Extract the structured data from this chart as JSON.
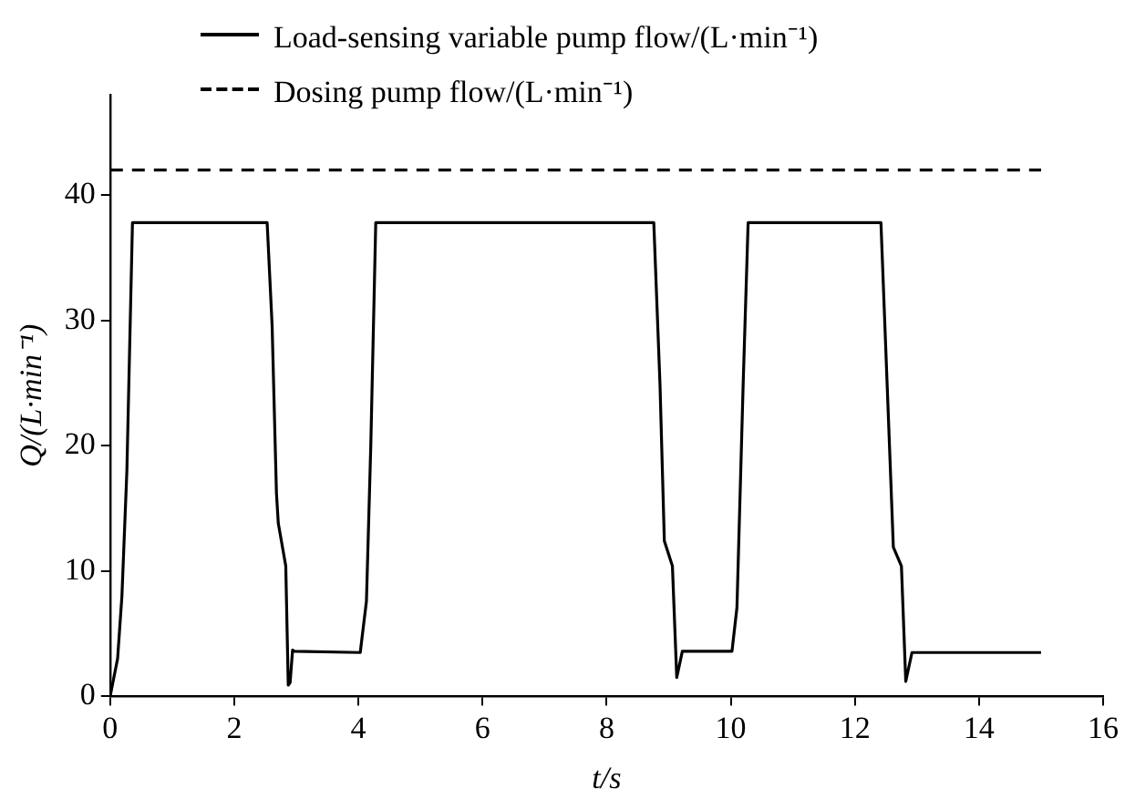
{
  "chart_data": {
    "type": "line",
    "xlabel": "t/s",
    "ylabel": "Q/(L·min⁻¹)",
    "xlim": [
      0,
      16
    ],
    "ylim": [
      0,
      48
    ],
    "xticks": [
      0,
      2,
      4,
      6,
      8,
      10,
      12,
      14,
      16
    ],
    "yticks": [
      0,
      10,
      20,
      30,
      40
    ],
    "grid": false,
    "legend": "top",
    "marker": "none",
    "series": [
      {
        "name": "Load-sensing variable pump flow/(L·min⁻¹)",
        "color": "#000000",
        "line_style": "solid",
        "x": [
          0,
          0.12,
          0.19,
          0.27,
          0.36,
          2.53,
          2.61,
          2.68,
          2.71,
          2.83,
          2.87,
          2.9,
          2.94,
          2.97,
          4.03,
          4.13,
          4.2,
          4.28,
          8.76,
          8.86,
          8.93,
          9.06,
          9.13,
          9.22,
          10.02,
          10.1,
          10.2,
          10.28,
          12.42,
          12.52,
          12.62,
          12.75,
          12.82,
          12.92,
          15
        ],
        "values": [
          0,
          3,
          8,
          18,
          37.8,
          37.8,
          29.6,
          16.2,
          13.8,
          10.4,
          0.9,
          1.1,
          3.7,
          3.6,
          3.5,
          7.6,
          20,
          37.8,
          37.8,
          24.9,
          12.4,
          10.4,
          1.5,
          3.6,
          3.6,
          7.1,
          24.9,
          37.8,
          37.8,
          24.9,
          11.9,
          10.4,
          1.2,
          3.5,
          3.5
        ]
      },
      {
        "name": "Dosing pump flow/(L·min⁻¹)",
        "color": "#000000",
        "line_style": "dashed",
        "x": [
          0,
          15
        ],
        "values": [
          42,
          42
        ]
      }
    ]
  }
}
